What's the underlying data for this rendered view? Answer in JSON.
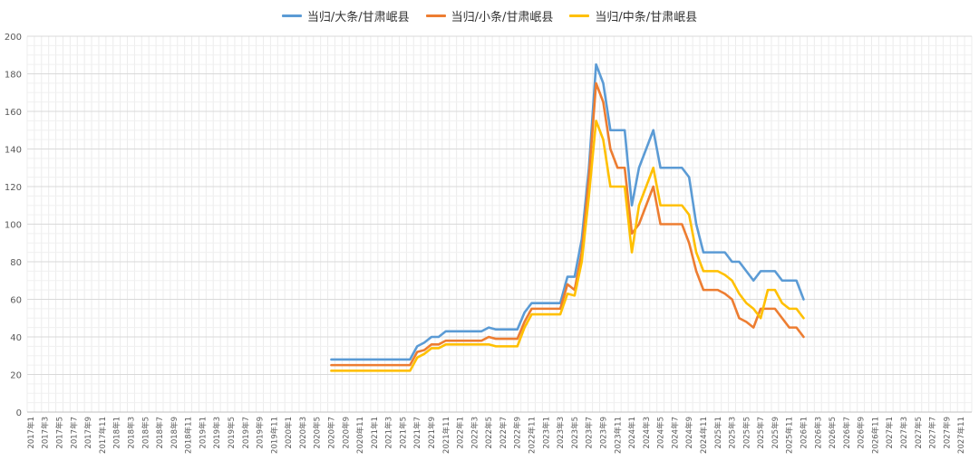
{
  "chart_data": {
    "type": "line",
    "title": "",
    "xlabel": "",
    "ylabel": "",
    "ylim": [
      0,
      200
    ],
    "yticks": [
      0,
      20,
      40,
      60,
      80,
      100,
      120,
      140,
      160,
      180,
      200
    ],
    "grid": true,
    "legend_position": "top",
    "x_categories": [
      "2017年1",
      "2017年2",
      "2017年3",
      "2017年4",
      "2017年5",
      "2017年6",
      "2017年7",
      "2017年8",
      "2017年9",
      "2017年10",
      "2017年11",
      "2017年12",
      "2018年1",
      "2018年2",
      "2018年3",
      "2018年4",
      "2018年5",
      "2018年6",
      "2018年7",
      "2018年8",
      "2018年9",
      "2018年10",
      "2018年11",
      "2018年12",
      "2019年1",
      "2019年2",
      "2019年3",
      "2019年4",
      "2019年5",
      "2019年6",
      "2019年7",
      "2019年8",
      "2019年9",
      "2019年10",
      "2019年11",
      "2019年12",
      "2020年1",
      "2020年2",
      "2020年3",
      "2020年4",
      "2020年5",
      "2020年6",
      "2020年7",
      "2020年8",
      "2020年9",
      "2020年10",
      "2020年11",
      "2020年12",
      "2021年1",
      "2021年2",
      "2021年3",
      "2021年4",
      "2021年5",
      "2021年6",
      "2021年7",
      "2021年8",
      "2021年9",
      "2021年10",
      "2021年11",
      "2021年12",
      "2022年1",
      "2022年2",
      "2022年3",
      "2022年4",
      "2022年5",
      "2022年6",
      "2022年7",
      "2022年8",
      "2022年9",
      "2022年10",
      "2022年11",
      "2022年12",
      "2023年1",
      "2023年2",
      "2023年3",
      "2023年4",
      "2023年5",
      "2023年6",
      "2023年7",
      "2023年8",
      "2023年9",
      "2023年10",
      "2023年11",
      "2023年12",
      "2024年1",
      "2024年2",
      "2024年3",
      "2024年4",
      "2024年5",
      "2024年6",
      "2024年7",
      "2024年8",
      "2024年9",
      "2024年10",
      "2024年11",
      "2024年12",
      "2025年1",
      "2025年2",
      "2025年3",
      "2025年4",
      "2025年5",
      "2025年6",
      "2025年7",
      "2025年8",
      "2025年9",
      "2025年10",
      "2025年11",
      "2025年12",
      "2026年1",
      "2026年2",
      "2026年3",
      "2026年4",
      "2026年5",
      "2026年6",
      "2026年7",
      "2026年8",
      "2026年9",
      "2026年10",
      "2026年11",
      "2026年12",
      "2027年1",
      "2027年2",
      "2027年3",
      "2027年4",
      "2027年5",
      "2027年6",
      "2027年7",
      "2027年8",
      "2027年9",
      "2027年10",
      "2027年11",
      "2027年12"
    ],
    "x_tick_labels": [
      "2017年1",
      "2017年3",
      "2017年5",
      "2017年7",
      "2017年9",
      "2017年11",
      "2018年1",
      "2018年3",
      "2018年5",
      "2018年7",
      "2018年9",
      "2018年11",
      "2019年1",
      "2019年3",
      "2019年5",
      "2019年7",
      "2019年9",
      "2019年11",
      "2020年1",
      "2020年3",
      "2020年5",
      "2020年7",
      "2020年9",
      "2020年11",
      "2021年1",
      "2021年3",
      "2021年5",
      "2021年7",
      "2021年9",
      "2021年11",
      "2022年1",
      "2022年3",
      "2022年5",
      "2022年7",
      "2022年9",
      "2022年11",
      "2023年1",
      "2023年3",
      "2023年5",
      "2023年7",
      "2023年9",
      "2023年11",
      "2024年1",
      "2024年3",
      "2024年5",
      "2024年7",
      "2024年9",
      "2024年11",
      "2025年1",
      "2025年3",
      "2025年5",
      "2025年7",
      "2025年9",
      "2025年11",
      "2026年1",
      "2026年3",
      "2026年5",
      "2026年7",
      "2026年9",
      "2026年11",
      "2027年1",
      "2027年3",
      "2027年5",
      "2027年7",
      "2027年9",
      "2027年11"
    ],
    "series": [
      {
        "name": "当归/大条/甘肃岷县",
        "color": "#5B9BD5",
        "start": "2020年7",
        "values": [
          28,
          28,
          28,
          28,
          28,
          28,
          28,
          28,
          28,
          28,
          28,
          28,
          35,
          37,
          40,
          40,
          43,
          43,
          43,
          43,
          43,
          43,
          45,
          44,
          44,
          44,
          44,
          53,
          58,
          58,
          58,
          58,
          58,
          72,
          72,
          92,
          130,
          185,
          175,
          150,
          150,
          150,
          110,
          130,
          140,
          150,
          130,
          130,
          130,
          130,
          125,
          100,
          85,
          85,
          85,
          85,
          80,
          80,
          75,
          70,
          75,
          75,
          75,
          70,
          70,
          70,
          60
        ]
      },
      {
        "name": "当归/小条/甘肃岷县",
        "color": "#ED7D31",
        "start": "2020年7",
        "values": [
          25,
          25,
          25,
          25,
          25,
          25,
          25,
          25,
          25,
          25,
          25,
          25,
          32,
          33,
          36,
          36,
          38,
          38,
          38,
          38,
          38,
          38,
          40,
          39,
          39,
          39,
          39,
          48,
          55,
          55,
          55,
          55,
          55,
          68,
          65,
          85,
          125,
          175,
          165,
          140,
          130,
          130,
          95,
          100,
          110,
          120,
          100,
          100,
          100,
          100,
          90,
          75,
          65,
          65,
          65,
          63,
          60,
          50,
          48,
          45,
          55,
          55,
          55,
          50,
          45,
          45,
          40
        ]
      },
      {
        "name": "当归/中条/甘肃岷县",
        "color": "#FFC000",
        "start": "2020年7",
        "values": [
          22,
          22,
          22,
          22,
          22,
          22,
          22,
          22,
          22,
          22,
          22,
          22,
          29,
          31,
          34,
          34,
          36,
          36,
          36,
          36,
          36,
          36,
          36,
          35,
          35,
          35,
          35,
          45,
          52,
          52,
          52,
          52,
          52,
          63,
          62,
          80,
          115,
          155,
          145,
          120,
          120,
          120,
          85,
          110,
          120,
          130,
          110,
          110,
          110,
          110,
          105,
          85,
          75,
          75,
          75,
          73,
          70,
          63,
          58,
          55,
          50,
          65,
          65,
          58,
          55,
          55,
          50
        ]
      }
    ]
  }
}
